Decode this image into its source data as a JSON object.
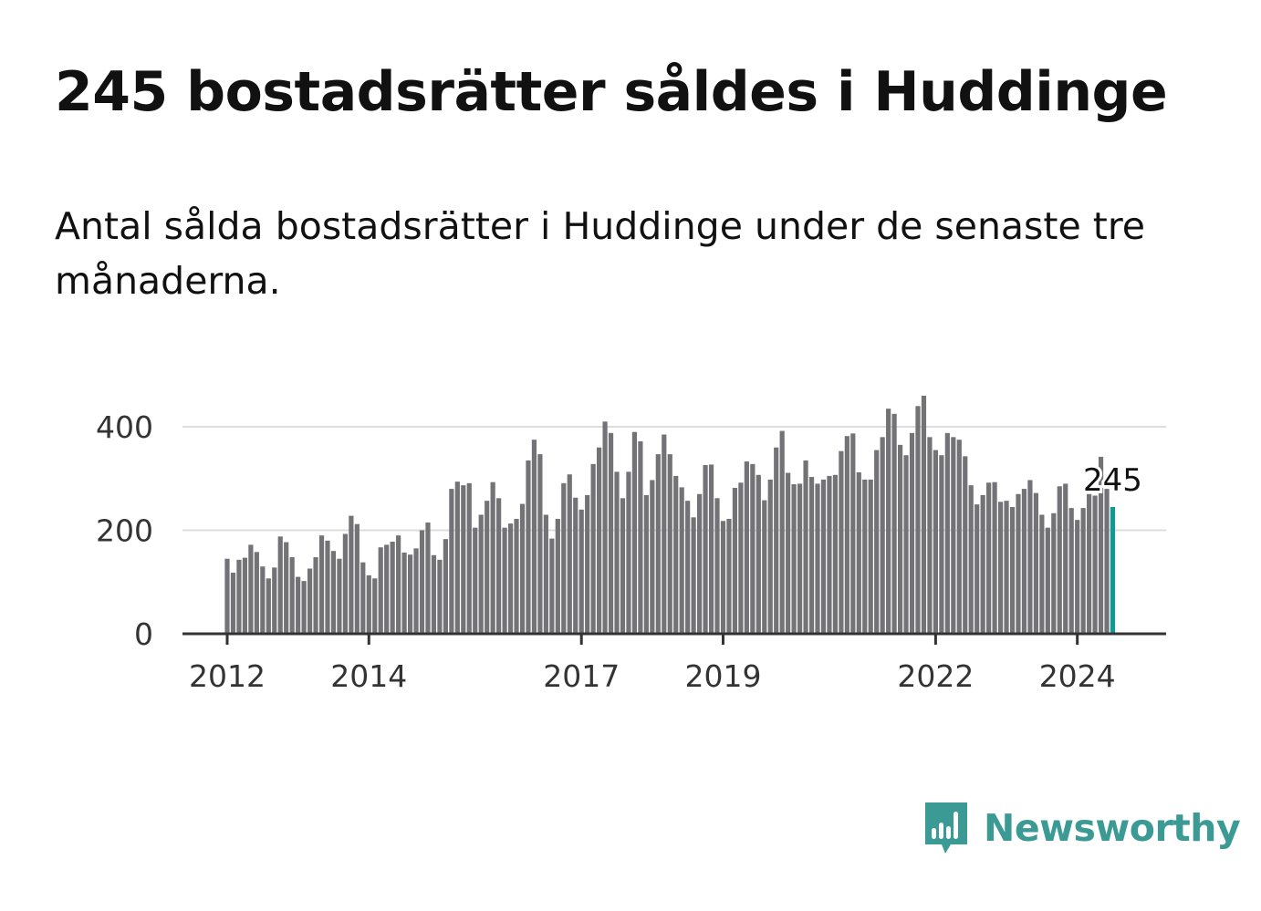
{
  "title": "245 bostadsrätter såldes i Huddinge",
  "subtitle": "Antal sålda bostadsrätter i Huddinge under de senaste tre månaderna.",
  "brand": "Newsworthy",
  "colors": {
    "bars": "#737276",
    "highlight": "#0e9a95",
    "grid": "#dddddd",
    "axis": "#333333",
    "brand": "#3b9a94"
  },
  "chart_data": {
    "type": "bar",
    "x_start": "2012-01",
    "x_ticks": [
      "2012",
      "2014",
      "2017",
      "2019",
      "2022",
      "2024"
    ],
    "y_ticks": [
      0,
      200,
      400
    ],
    "ylim": [
      0,
      400
    ],
    "highlight_label": "245",
    "values": [
      145,
      118,
      143,
      147,
      172,
      158,
      130,
      107,
      128,
      188,
      177,
      148,
      110,
      102,
      126,
      148,
      190,
      180,
      160,
      145,
      193,
      228,
      212,
      138,
      113,
      107,
      167,
      172,
      178,
      190,
      157,
      153,
      165,
      200,
      215,
      152,
      143,
      183,
      280,
      294,
      287,
      291,
      205,
      230,
      257,
      293,
      262,
      205,
      213,
      222,
      251,
      335,
      375,
      347,
      230,
      184,
      222,
      291,
      308,
      263,
      240,
      268,
      328,
      360,
      410,
      388,
      313,
      262,
      313,
      390,
      372,
      268,
      297,
      347,
      385,
      347,
      305,
      283,
      257,
      225,
      270,
      326,
      327,
      262,
      218,
      222,
      282,
      292,
      333,
      328,
      307,
      258,
      298,
      360,
      392,
      311,
      289,
      290,
      335,
      303,
      290,
      298,
      305,
      307,
      353,
      382,
      387,
      312,
      298,
      298,
      355,
      380,
      435,
      425,
      365,
      345,
      388,
      440,
      460,
      380,
      355,
      345,
      388,
      380,
      375,
      343,
      287,
      250,
      268,
      292,
      293,
      255,
      257,
      245,
      270,
      280,
      297,
      272,
      230,
      205,
      233,
      285,
      290,
      243,
      220,
      243,
      270,
      267,
      342,
      280,
      245
    ]
  }
}
